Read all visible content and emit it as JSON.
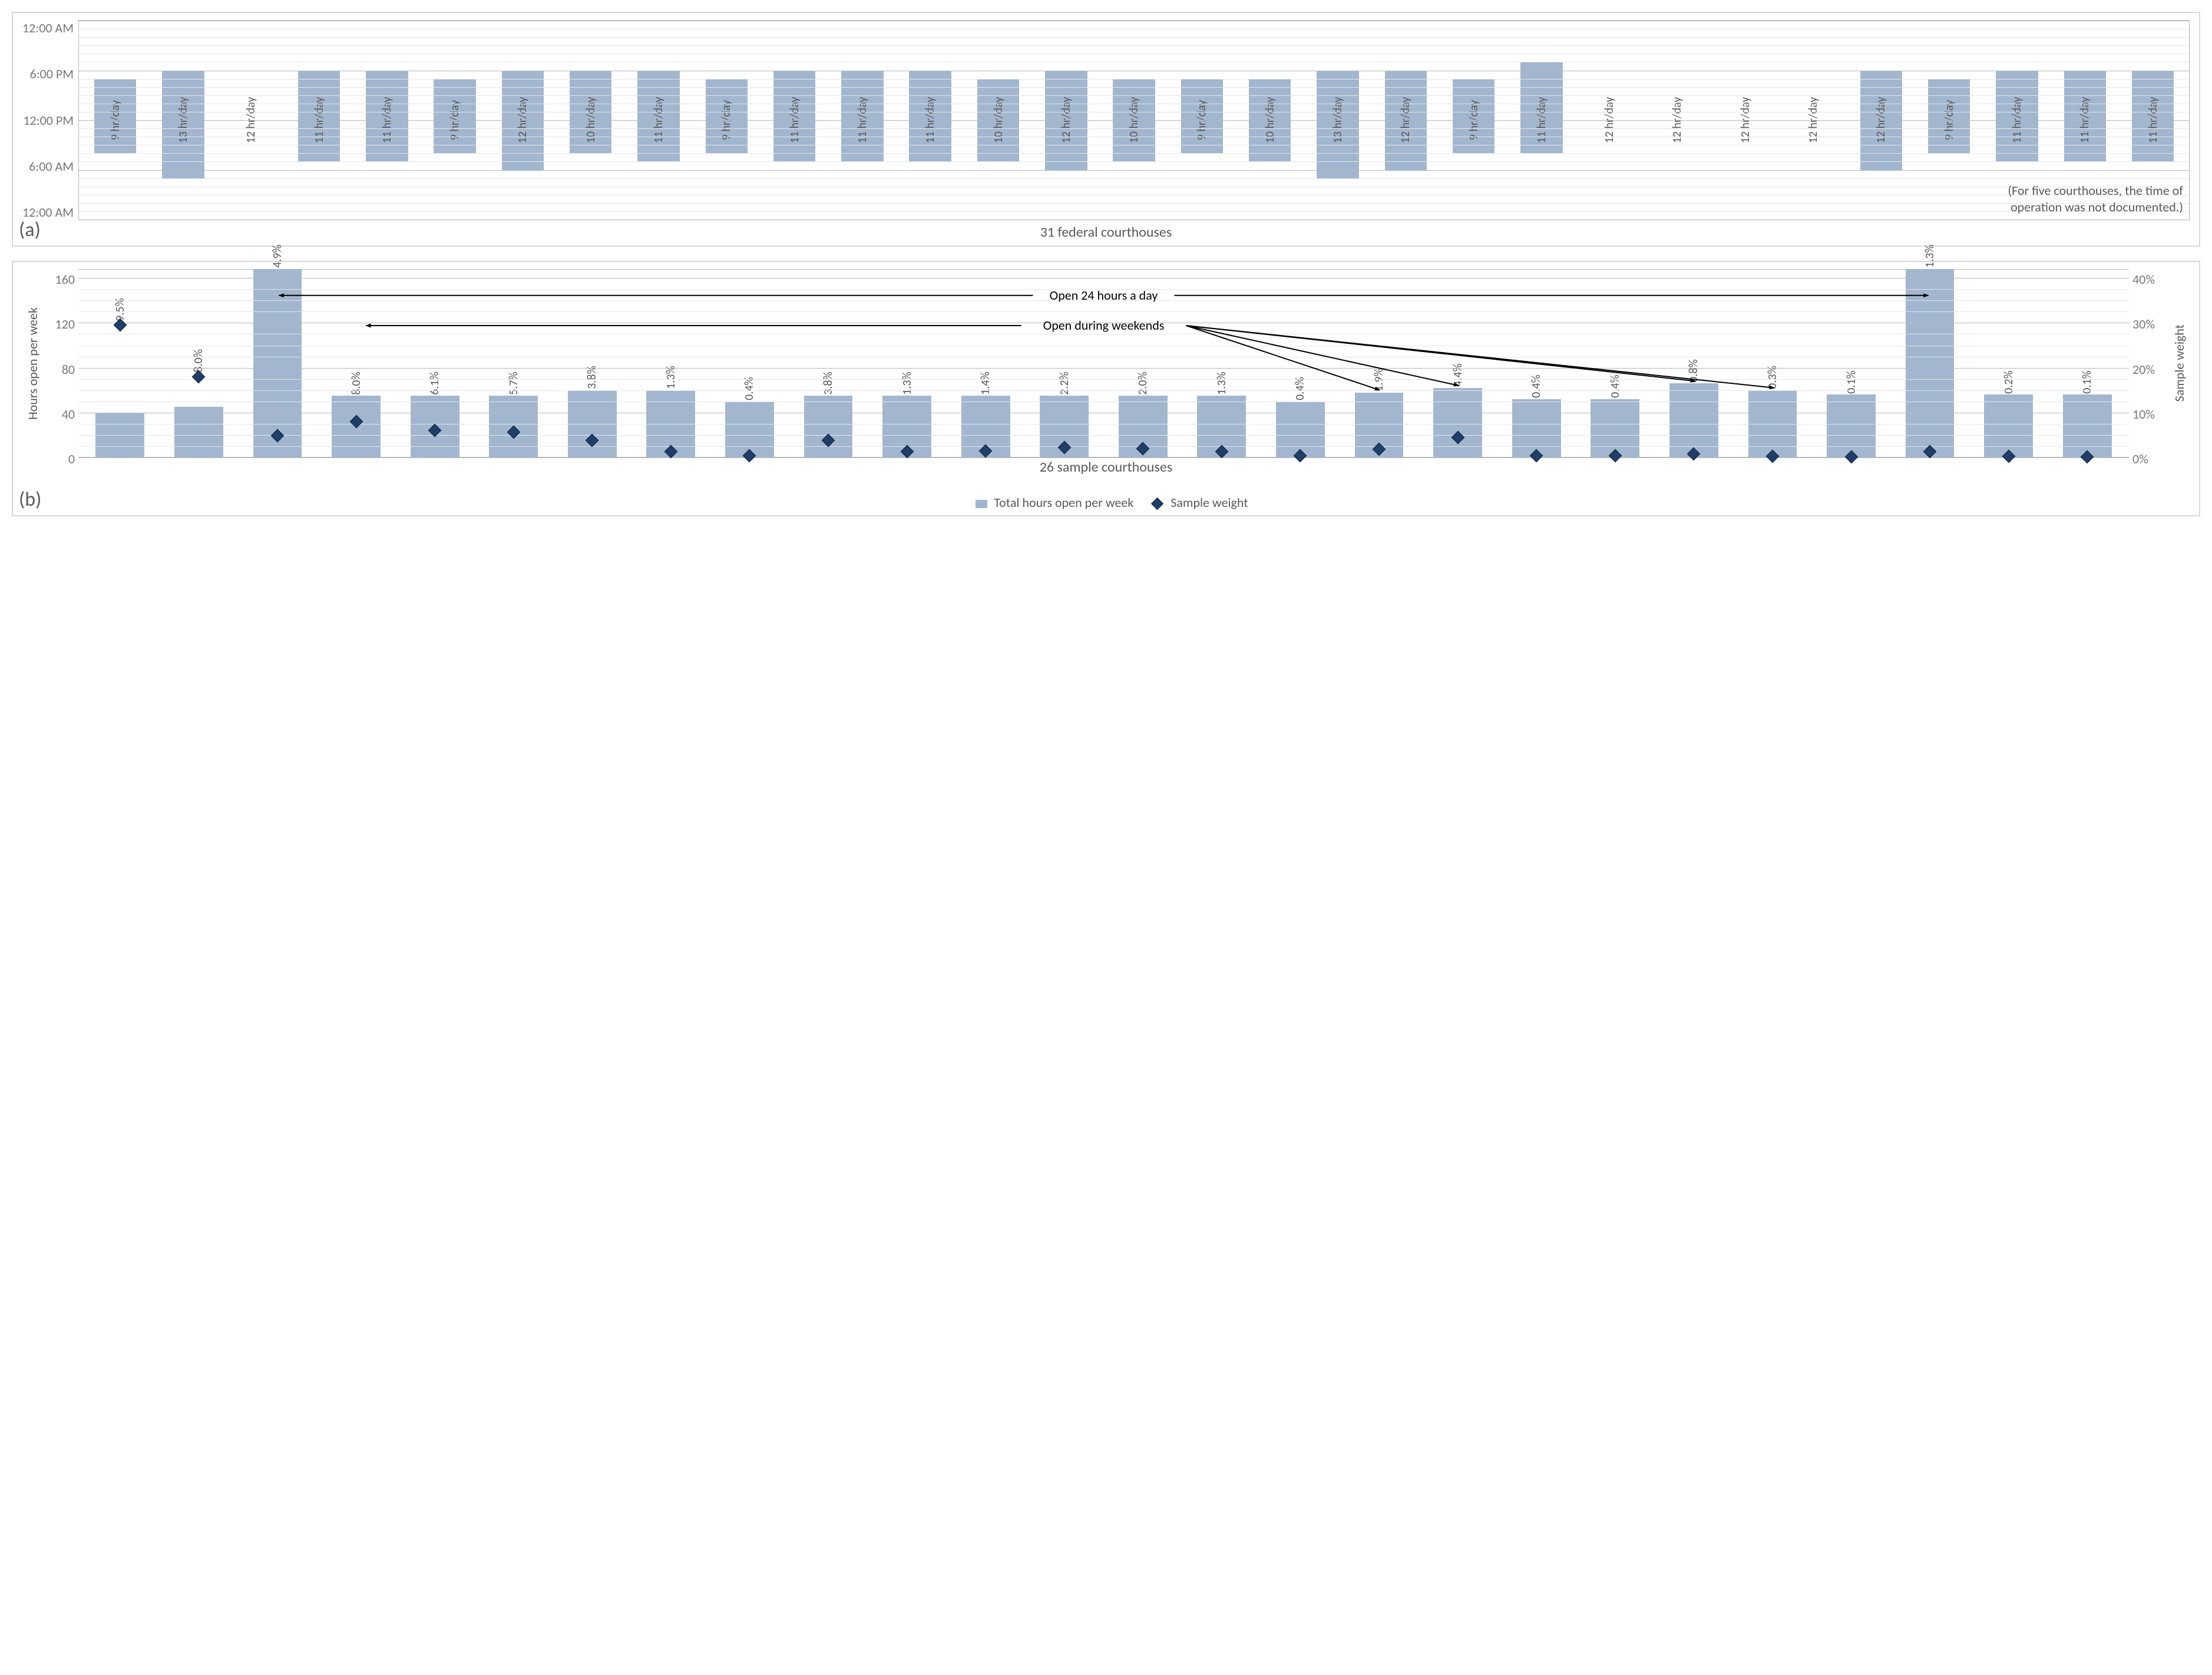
{
  "chart_a": {
    "type": "floating-bar-timeline",
    "y_ticks": [
      "12:00 AM",
      "6:00 PM",
      "12:00 PM",
      "6:00 AM",
      "12:00 AM"
    ],
    "y_tick_positions_pct": [
      0,
      25,
      50,
      75,
      100
    ],
    "gridlines_major_pct": [
      0,
      25,
      50,
      75,
      100
    ],
    "gridlines_minor_step_pct": 4.1667,
    "major_grid_color": "#b7b7b7",
    "minor_grid_color": "#e6e6e6",
    "bar_color": "#a2b6cf",
    "x_title": "31 federal courthouses",
    "note_line1": "(For five courthouses, the time of",
    "note_line2": "operation was not documented.)",
    "bars": [
      {
        "label": "9 hr/day",
        "start_hr": 8,
        "end_hr": 17
      },
      {
        "label": "13 hr/day",
        "start_hr": 5,
        "end_hr": 18
      },
      {
        "label": "12 hr/day",
        "start_hr": null,
        "end_hr": null
      },
      {
        "label": "11 hr/day",
        "start_hr": 7,
        "end_hr": 18
      },
      {
        "label": "11 hr/day",
        "start_hr": 7,
        "end_hr": 18
      },
      {
        "label": "9 hr/day",
        "start_hr": 8,
        "end_hr": 17
      },
      {
        "label": "12 hr/day",
        "start_hr": 6,
        "end_hr": 18
      },
      {
        "label": "10 hr/day",
        "start_hr": 8,
        "end_hr": 18
      },
      {
        "label": "11 hr/day",
        "start_hr": 7,
        "end_hr": 18
      },
      {
        "label": "9 hr/day",
        "start_hr": 8,
        "end_hr": 17
      },
      {
        "label": "11 hr/day",
        "start_hr": 7,
        "end_hr": 18
      },
      {
        "label": "11 hr/day",
        "start_hr": 7,
        "end_hr": 18
      },
      {
        "label": "11 hr/day",
        "start_hr": 7,
        "end_hr": 18
      },
      {
        "label": "10 hr/day",
        "start_hr": 7,
        "end_hr": 17
      },
      {
        "label": "12 hr/day",
        "start_hr": 6,
        "end_hr": 18
      },
      {
        "label": "10 hr/day",
        "start_hr": 7,
        "end_hr": 17
      },
      {
        "label": "9 hr/day",
        "start_hr": 8,
        "end_hr": 17
      },
      {
        "label": "10 hr/day",
        "start_hr": 7,
        "end_hr": 17
      },
      {
        "label": "13 hr/day",
        "start_hr": 5,
        "end_hr": 18
      },
      {
        "label": "12 hr/day",
        "start_hr": 6,
        "end_hr": 18
      },
      {
        "label": "9 hr/day",
        "start_hr": 8,
        "end_hr": 17
      },
      {
        "label": "11 hr/day",
        "start_hr": 8,
        "end_hr": 19
      },
      {
        "label": "12 hr/day",
        "start_hr": null,
        "end_hr": null
      },
      {
        "label": "12 hr/day",
        "start_hr": null,
        "end_hr": null
      },
      {
        "label": "12 hr/day",
        "start_hr": null,
        "end_hr": null
      },
      {
        "label": "12 hr/day",
        "start_hr": null,
        "end_hr": null
      },
      {
        "label": "12 hr/day",
        "start_hr": 6,
        "end_hr": 18
      },
      {
        "label": "9 hr/day",
        "start_hr": 8,
        "end_hr": 17
      },
      {
        "label": "11 hr/day",
        "start_hr": 7,
        "end_hr": 18
      },
      {
        "label": "11 hr/day",
        "start_hr": 7,
        "end_hr": 18
      },
      {
        "label": "11 hr/day",
        "start_hr": 7,
        "end_hr": 18
      }
    ],
    "panel_label": "(a)",
    "label_fontsize_pt": 15,
    "axis_fontsize_pt": 16
  },
  "chart_b": {
    "type": "bar+scatter-dual-axis",
    "y_left_title": "Hours open per week",
    "y_left_ticks": [
      "160",
      "120",
      "80",
      "40",
      "0"
    ],
    "y_left_max": 168,
    "y_left_min": 0,
    "y_right_title": "Sample weight",
    "y_right_ticks": [
      "40%",
      "30%",
      "20%",
      "10%",
      "0%"
    ],
    "y_right_max": 42,
    "y_right_min": 0,
    "x_title": "26 sample courthouses",
    "bar_color": "#a2b6cf",
    "marker_color": "#1f3e68",
    "marker_border": "#0d2440",
    "major_grid_color": "#b7b7b7",
    "minor_grid_color": "#e6e6e6",
    "annot_24h": "Open 24 hours a day",
    "annot_weekends": "Open during weekends",
    "legend_bars": "Total hours open per week",
    "legend_markers": "Sample weight",
    "panel_label": "(b)",
    "points": [
      {
        "hours": 40,
        "pct": "29.5%",
        "w": 29.5
      },
      {
        "hours": 45,
        "pct": "18.0%",
        "w": 18.0
      },
      {
        "hours": 168,
        "pct": "4.9%",
        "w": 4.9
      },
      {
        "hours": 55,
        "pct": "8.0%",
        "w": 8.0
      },
      {
        "hours": 55,
        "pct": "6.1%",
        "w": 6.1
      },
      {
        "hours": 55,
        "pct": "5.7%",
        "w": 5.7
      },
      {
        "hours": 60,
        "pct": "3.8%",
        "w": 3.8
      },
      {
        "hours": 60,
        "pct": "1.3%",
        "w": 1.3
      },
      {
        "hours": 50,
        "pct": "0.4%",
        "w": 0.4
      },
      {
        "hours": 55,
        "pct": "3.8%",
        "w": 3.8
      },
      {
        "hours": 55,
        "pct": "1.3%",
        "w": 1.3
      },
      {
        "hours": 55,
        "pct": "1.4%",
        "w": 1.4
      },
      {
        "hours": 55,
        "pct": "2.2%",
        "w": 2.2
      },
      {
        "hours": 55,
        "pct": "2.0%",
        "w": 2.0
      },
      {
        "hours": 55,
        "pct": "1.3%",
        "w": 1.3
      },
      {
        "hours": 50,
        "pct": "0.4%",
        "w": 0.4
      },
      {
        "hours": 58,
        "pct": "1.9%",
        "w": 1.9
      },
      {
        "hours": 62,
        "pct": "4.4%",
        "w": 4.4
      },
      {
        "hours": 52,
        "pct": "0.4%",
        "w": 0.4
      },
      {
        "hours": 52,
        "pct": "0.4%",
        "w": 0.4
      },
      {
        "hours": 66,
        "pct": "0.8%",
        "w": 0.8
      },
      {
        "hours": 60,
        "pct": "0.3%",
        "w": 0.3
      },
      {
        "hours": 56,
        "pct": "0.1%",
        "w": 0.1
      },
      {
        "hours": 168,
        "pct": "1.3%",
        "w": 1.3
      },
      {
        "hours": 56,
        "pct": "0.2%",
        "w": 0.2
      },
      {
        "hours": 56,
        "pct": "0.1%",
        "w": 0.1
      }
    ],
    "weekend_targets": [
      16,
      17,
      20,
      21
    ],
    "h24_targets": [
      2,
      23
    ]
  }
}
